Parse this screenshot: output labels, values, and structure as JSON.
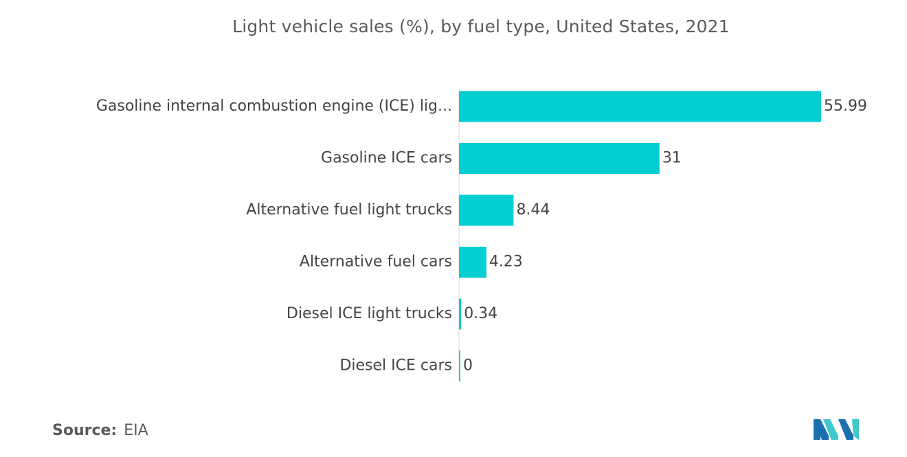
{
  "chart_data": {
    "type": "bar",
    "orientation": "horizontal",
    "title": "Light vehicle sales (%), by fuel type, United States, 2021",
    "categories": [
      "Gasoline internal combustion engine (ICE) lig...",
      "Gasoline ICE cars",
      "Alternative fuel light trucks",
      "Alternative fuel cars",
      "Diesel ICE light trucks",
      "Diesel ICE cars"
    ],
    "values": [
      55.99,
      31,
      8.44,
      4.23,
      0.34,
      0
    ],
    "value_labels": [
      "55.99",
      "31",
      "8.44",
      "4.23",
      "0.34",
      "0"
    ],
    "bar_color": "#00ced1",
    "grid": false,
    "xlabel": "",
    "ylabel": ""
  },
  "source": {
    "label": "Source:",
    "value": "EIA"
  },
  "logo": {
    "icon": "mordor-intelligence-logo-icon",
    "colors": [
      "#1a6fb0",
      "#3fc7cc"
    ]
  }
}
